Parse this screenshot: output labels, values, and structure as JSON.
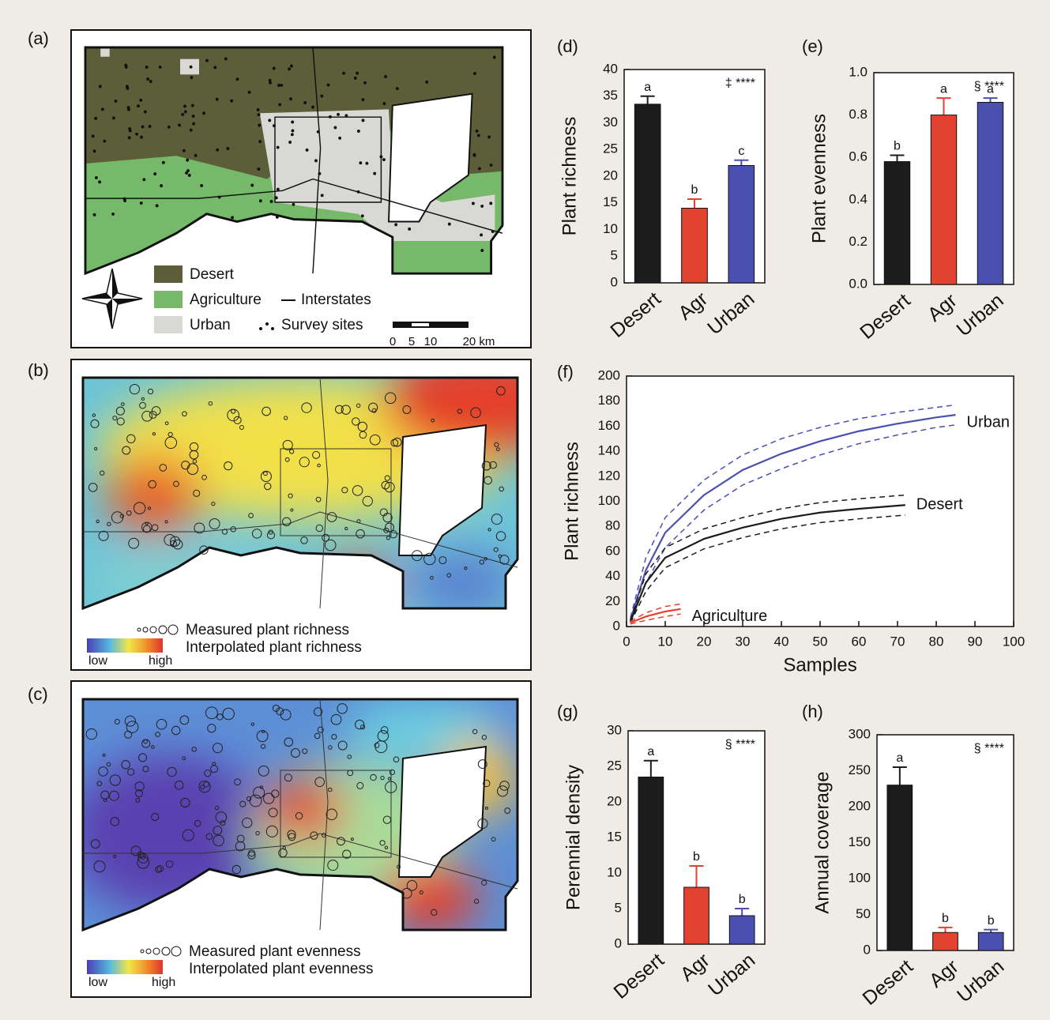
{
  "maps": [
    {
      "panel": "(a)",
      "legend": [
        "Desert",
        "Agriculture",
        "Interstates",
        "Urban",
        "Survey sites"
      ],
      "scale": [
        "0",
        "5",
        "10",
        "20 km"
      ]
    },
    {
      "panel": "(b)",
      "legend": [
        "Measured plant richness",
        "Interpolated plant richness"
      ],
      "colorbar": [
        "low",
        "high"
      ]
    },
    {
      "panel": "(c)",
      "legend": [
        "Measured plant evenness",
        "Interpolated plant evenness"
      ],
      "colorbar": [
        "low",
        "high"
      ]
    }
  ],
  "chart_data": [
    {
      "type": "bar",
      "panel": "(d)",
      "y_label": "Plant richness",
      "annotation": "‡ ****",
      "categories": [
        "Desert",
        "Agr",
        "Urban"
      ],
      "values": [
        33.5,
        14,
        22
      ],
      "errors": [
        1.5,
        1.7,
        1
      ],
      "letters": [
        "a",
        "b",
        "c"
      ],
      "colors": [
        "#1c1c1c",
        "#e2422f",
        "#4b4fb0"
      ],
      "ylim": [
        0,
        40
      ],
      "yticks": [
        0,
        5,
        10,
        15,
        20,
        25,
        30,
        35,
        40
      ]
    },
    {
      "type": "bar",
      "panel": "(e)",
      "y_label": "Plant evenness",
      "annotation": "§ ****",
      "categories": [
        "Desert",
        "Agr",
        "Urban"
      ],
      "values": [
        0.58,
        0.8,
        0.86
      ],
      "errors": [
        0.03,
        0.08,
        0.02
      ],
      "letters": [
        "b",
        "a",
        "a"
      ],
      "colors": [
        "#1c1c1c",
        "#e2422f",
        "#4b4fb0"
      ],
      "ylim": [
        0,
        1
      ],
      "yticks": [
        {
          "value": 0,
          "label": "0.0"
        },
        0.2,
        0.4,
        0.6,
        0.8,
        {
          "value": 1,
          "label": "1.0"
        }
      ]
    },
    {
      "type": "line",
      "panel": "(f)",
      "y_label": "Plant richness",
      "x_label": "Samples",
      "xlim": [
        0,
        100
      ],
      "xticks": [
        0,
        10,
        20,
        30,
        40,
        50,
        60,
        70,
        80,
        90,
        100
      ],
      "ylim": [
        0,
        200
      ],
      "yticks": [
        0,
        20,
        40,
        60,
        80,
        100,
        120,
        140,
        160,
        180,
        200
      ],
      "series": [
        {
          "name": "Urban",
          "color": "#4b4fb0",
          "x": [
            1,
            5,
            10,
            20,
            30,
            40,
            50,
            60,
            70,
            80,
            85
          ],
          "values": [
            5,
            45,
            75,
            105,
            125,
            138,
            148,
            156,
            162,
            167,
            169
          ],
          "lower": [
            3,
            35,
            63,
            93,
            113,
            126,
            137,
            146,
            153,
            159,
            161
          ],
          "upper": [
            7,
            55,
            87,
            117,
            137,
            150,
            159,
            166,
            171,
            175,
            177
          ]
        },
        {
          "name": "Desert",
          "color": "#1c1c1c",
          "x": [
            1,
            5,
            10,
            20,
            30,
            40,
            50,
            60,
            72
          ],
          "values": [
            4,
            35,
            55,
            70,
            79,
            86,
            91,
            94,
            97
          ],
          "lower": [
            3,
            28,
            47,
            62,
            71,
            78,
            83,
            86,
            89
          ],
          "upper": [
            5,
            42,
            63,
            78,
            87,
            94,
            99,
            102,
            105
          ]
        },
        {
          "name": "Agriculture",
          "color": "#e2422f",
          "x": [
            1,
            5,
            10,
            14
          ],
          "values": [
            3,
            8,
            12,
            14
          ],
          "lower": [
            2,
            5,
            8,
            10
          ],
          "upper": [
            4,
            11,
            16,
            18
          ]
        }
      ]
    },
    {
      "type": "bar",
      "panel": "(g)",
      "y_label": "Perennial density",
      "annotation": "§ ****",
      "categories": [
        "Desert",
        "Agr",
        "Urban"
      ],
      "values": [
        23.5,
        8,
        4
      ],
      "errors": [
        2.3,
        3,
        1
      ],
      "letters": [
        "a",
        "b",
        "b"
      ],
      "colors": [
        "#1c1c1c",
        "#e2422f",
        "#4b4fb0"
      ],
      "ylim": [
        0,
        30
      ],
      "yticks": [
        0,
        5,
        10,
        15,
        20,
        25,
        30
      ]
    },
    {
      "type": "bar",
      "panel": "(h)",
      "y_label": "Annual coverage",
      "annotation": "§ ****",
      "categories": [
        "Desert",
        "Agr",
        "Urban"
      ],
      "values": [
        230,
        25,
        25
      ],
      "errors": [
        25,
        7,
        4
      ],
      "letters": [
        "a",
        "b",
        "b"
      ],
      "colors": [
        "#1c1c1c",
        "#e2422f",
        "#4b4fb0"
      ],
      "ylim": [
        0,
        300
      ],
      "yticks": [
        0,
        50,
        100,
        150,
        200,
        250,
        300
      ]
    }
  ]
}
